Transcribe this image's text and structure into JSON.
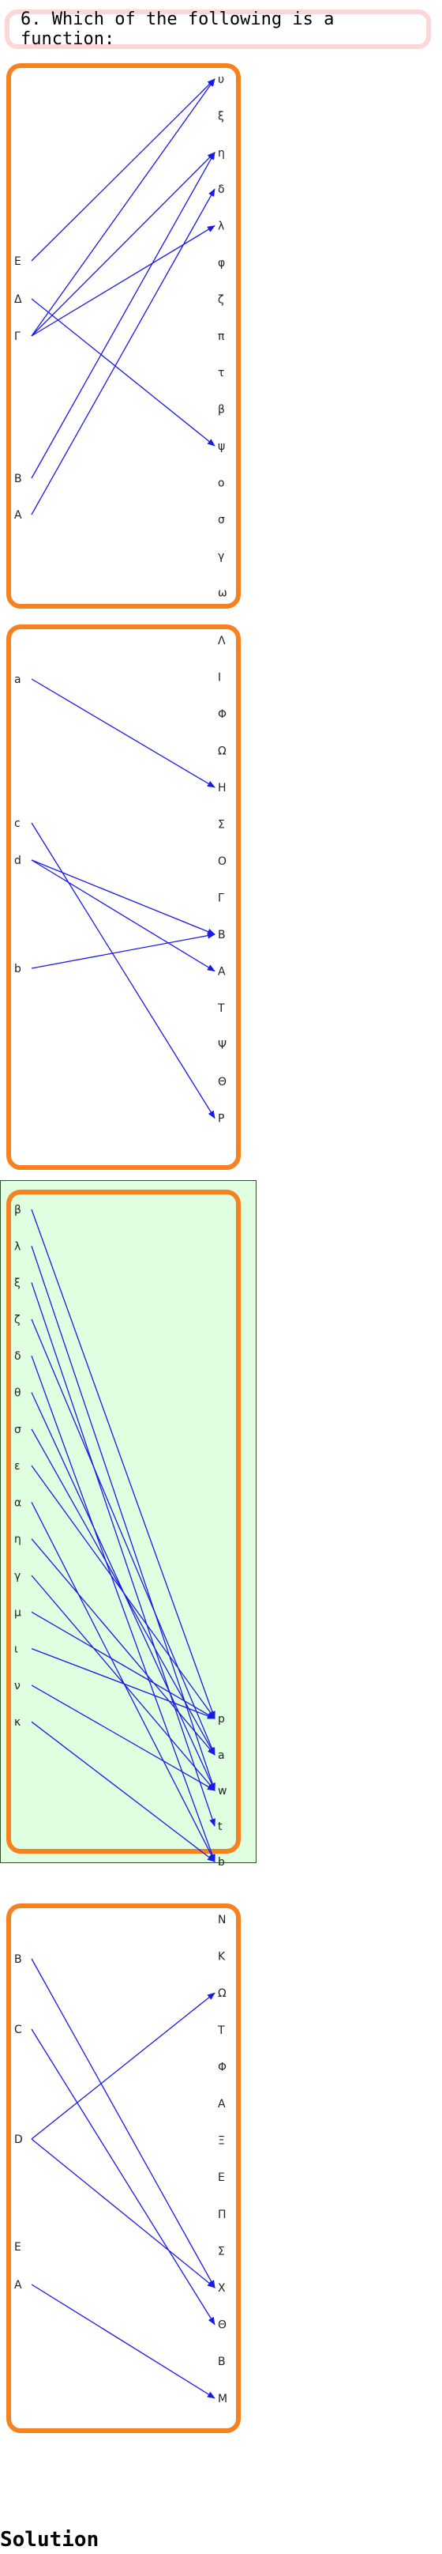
{
  "question": {
    "text": "6. Which of the following is a function:"
  },
  "options": [
    {
      "selected": false,
      "domain": [
        "E",
        "Δ",
        "Γ",
        "B",
        "A"
      ],
      "codomain": [
        "υ",
        "ξ",
        "η",
        "δ",
        "λ",
        "φ",
        "ζ",
        "π",
        "τ",
        "β",
        "ψ",
        "ο",
        "σ",
        "γ",
        "ω"
      ],
      "arrows": [
        [
          "E",
          "υ"
        ],
        [
          "Δ",
          "ψ"
        ],
        [
          "Γ",
          "υ"
        ],
        [
          "Γ",
          "λ"
        ],
        [
          "Γ",
          "η"
        ],
        [
          "B",
          "η"
        ],
        [
          "A",
          "δ"
        ]
      ]
    },
    {
      "selected": false,
      "domain": [
        "a",
        "c",
        "d",
        "b"
      ],
      "codomain": [
        "Λ",
        "I",
        "Φ",
        "Ω",
        "H",
        "Σ",
        "O",
        "Γ",
        "B",
        "A",
        "T",
        "Ψ",
        "Θ",
        "P"
      ],
      "arrows": [
        [
          "a",
          "H"
        ],
        [
          "c",
          "P"
        ],
        [
          "d",
          "B"
        ],
        [
          "d",
          "A"
        ],
        [
          "b",
          "B"
        ]
      ]
    },
    {
      "selected": true,
      "domain": [
        "β",
        "λ",
        "ξ",
        "ζ",
        "δ",
        "θ",
        "σ",
        "ε",
        "α",
        "η",
        "γ",
        "μ",
        "ι",
        "ν",
        "κ"
      ],
      "codomain": [
        "p",
        "a",
        "w",
        "t",
        "b"
      ],
      "arrows": [
        [
          "β",
          "p"
        ],
        [
          "λ",
          "w"
        ],
        [
          "ξ",
          "t"
        ],
        [
          "ζ",
          "a"
        ],
        [
          "δ",
          "b"
        ],
        [
          "θ",
          "w"
        ],
        [
          "σ",
          "a"
        ],
        [
          "ε",
          "p"
        ],
        [
          "α",
          "b"
        ],
        [
          "η",
          "a"
        ],
        [
          "γ",
          "w"
        ],
        [
          "μ",
          "p"
        ],
        [
          "ι",
          "p"
        ],
        [
          "ν",
          "w"
        ],
        [
          "κ",
          "b"
        ]
      ]
    },
    {
      "selected": false,
      "domain": [
        "B",
        "C",
        "D",
        "E",
        "A"
      ],
      "codomain": [
        "N",
        "K",
        "Ω",
        "T",
        "Φ",
        "A",
        "Ξ",
        "E",
        "Π",
        "Σ",
        "X",
        "Θ",
        "B",
        "M"
      ],
      "arrows": [
        [
          "B",
          "X"
        ],
        [
          "C",
          "Θ"
        ],
        [
          "D",
          "Ω"
        ],
        [
          "D",
          "X"
        ],
        [
          "A",
          "M"
        ]
      ]
    }
  ],
  "colors": {
    "frame": "#f5821f",
    "arrow": "#1a1ae6",
    "highlight": "#e0ffe0"
  },
  "solution": {
    "label": "Solution"
  }
}
